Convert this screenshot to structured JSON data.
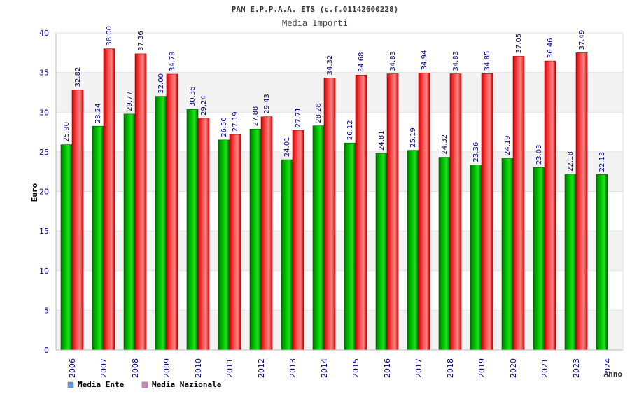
{
  "chart_data": {
    "type": "bar",
    "title": "PAN E.P.P.A.A. ETS (c.f.01142600228)",
    "subtitle": "Media Importi",
    "ylabel": "Euro",
    "xlabel": "Anno",
    "ylim": [
      0,
      40
    ],
    "yticks": [
      0,
      5,
      10,
      15,
      20,
      25,
      30,
      35,
      40
    ],
    "grid": true,
    "legend_position": "bottom-left",
    "categories": [
      "2006",
      "2007",
      "2008",
      "2009",
      "2010",
      "2011",
      "2012",
      "2013",
      "2014",
      "2015",
      "2016",
      "2017",
      "2018",
      "2019",
      "2020",
      "2021",
      "2023",
      "2024"
    ],
    "series": [
      {
        "name": "Media Ente",
        "color": "#00bb00",
        "legend_color": "#6699dd",
        "values": [
          25.9,
          28.24,
          29.77,
          32.0,
          30.36,
          26.5,
          27.88,
          24.01,
          28.28,
          26.12,
          24.81,
          25.19,
          24.32,
          23.36,
          24.19,
          23.03,
          22.18,
          22.13
        ],
        "labels": [
          "25.90",
          "28.24",
          "29.77",
          "32.00",
          "30.36",
          "26.50",
          "27.88",
          "24.01",
          "28.28",
          "26.12",
          "24.81",
          "25.19",
          "24.32",
          "23.36",
          "24.19",
          "23.03",
          "22.18",
          "22.13"
        ]
      },
      {
        "name": "Media Nazionale",
        "color": "#ee2222",
        "legend_color": "#cc88bb",
        "values": [
          32.82,
          38.0,
          37.36,
          34.79,
          29.24,
          27.19,
          29.43,
          27.71,
          34.32,
          34.68,
          34.83,
          34.94,
          34.83,
          34.85,
          37.05,
          36.46,
          37.49,
          null
        ],
        "labels": [
          "32.82",
          "38.00",
          "37.36",
          "34.79",
          "29.24",
          "27.19",
          "29.43",
          "27.71",
          "34.32",
          "34.68",
          "34.83",
          "34.94",
          "34.83",
          "34.85",
          "37.05",
          "36.46",
          "37.49",
          null
        ]
      }
    ]
  }
}
